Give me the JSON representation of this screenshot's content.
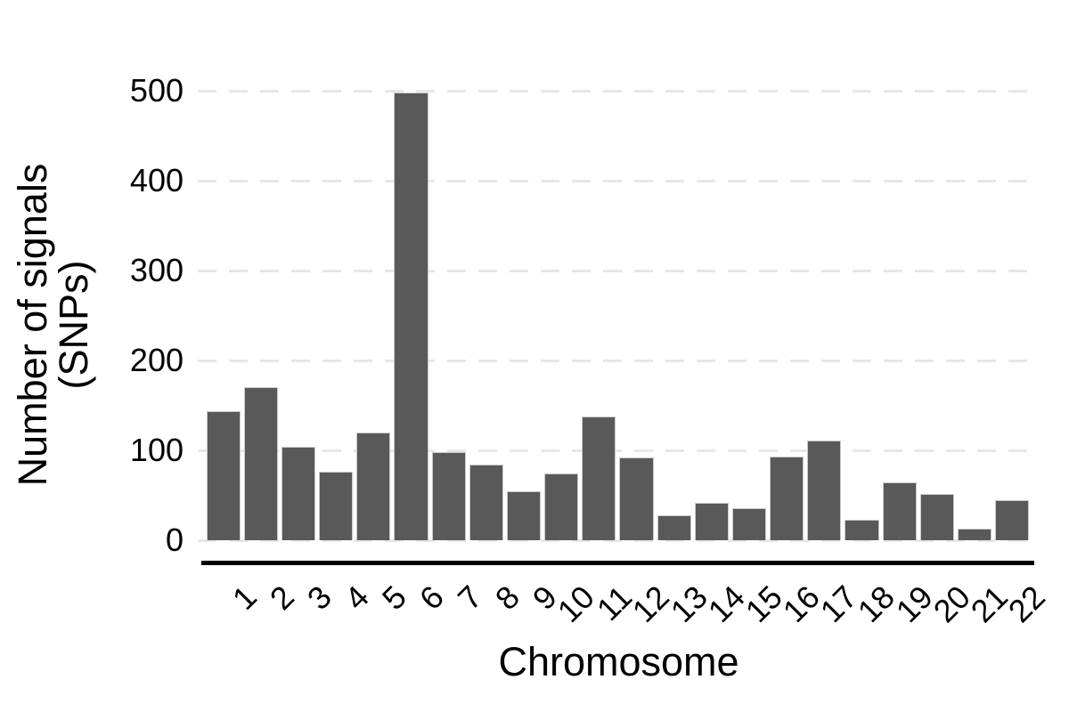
{
  "figure": {
    "xlabel": "Chromosome",
    "ylabel_line1": "Number of signals",
    "ylabel_line2": "(SNPs)"
  },
  "chart_data": {
    "type": "bar",
    "title": "",
    "xlabel": "Chromosome",
    "ylabel": "Number of signals (SNPs)",
    "categories": [
      "1",
      "2",
      "3",
      "4",
      "5",
      "6",
      "7",
      "8",
      "9",
      "10",
      "11",
      "12",
      "13",
      "14",
      "15",
      "16",
      "17",
      "18",
      "19",
      "20",
      "21",
      "22"
    ],
    "values": [
      144,
      170,
      104,
      76,
      120,
      498,
      98,
      84,
      54,
      74,
      138,
      92,
      28,
      42,
      36,
      93,
      111,
      23,
      64,
      51,
      13,
      45
    ],
    "yticks": [
      0,
      100,
      200,
      300,
      400,
      500
    ],
    "ylim": [
      0,
      520
    ],
    "grid": "horizontal-dashed",
    "legend": "none",
    "bar_color": "#595959",
    "bar_border_color": "#c9c9c9",
    "grid_color": "#e7e7e7",
    "axis_line_color": "#000000",
    "background": "#ffffff"
  }
}
